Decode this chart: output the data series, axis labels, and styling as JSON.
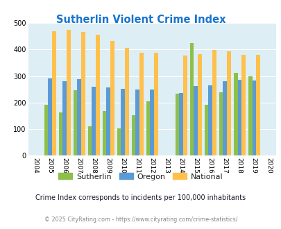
{
  "title": "Sutherlin Violent Crime Index",
  "years": [
    2004,
    2005,
    2006,
    2007,
    2008,
    2009,
    2010,
    2011,
    2012,
    2013,
    2014,
    2015,
    2016,
    2017,
    2018,
    2019,
    2020
  ],
  "sutherlin": [
    null,
    193,
    162,
    247,
    112,
    168,
    102,
    153,
    205,
    null,
    233,
    425,
    193,
    240,
    311,
    298,
    null
  ],
  "oregon": [
    null,
    290,
    280,
    288,
    260,
    256,
    252,
    250,
    250,
    null,
    235,
    261,
    264,
    281,
    286,
    283,
    null
  ],
  "national": [
    null,
    469,
    473,
    467,
    455,
    431,
    405,
    387,
    387,
    null,
    376,
    383,
    398,
    394,
    380,
    379,
    null
  ],
  "bar_width": 0.27,
  "ylim": [
    0,
    500
  ],
  "yticks": [
    0,
    100,
    200,
    300,
    400,
    500
  ],
  "plot_bg": "#ddeef5",
  "sutherlin_color": "#8dc04a",
  "oregon_color": "#5b9bd5",
  "national_color": "#ffc04c",
  "title_color": "#1874cd",
  "subtitle": "Crime Index corresponds to incidents per 100,000 inhabitants",
  "footer": "© 2025 CityRating.com - https://www.cityrating.com/crime-statistics/",
  "legend_labels": [
    "Sutherlin",
    "Oregon",
    "National"
  ]
}
